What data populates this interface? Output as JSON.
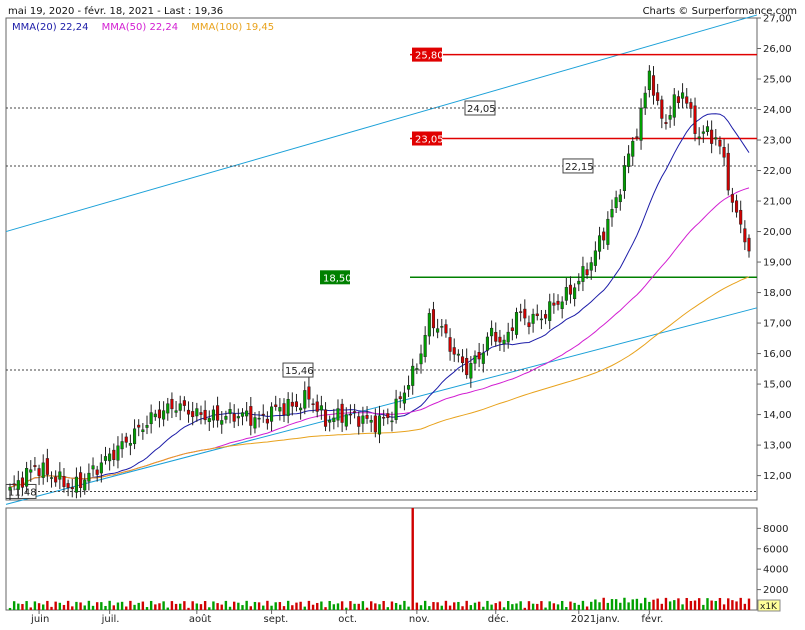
{
  "header": {
    "range_text": "mai 19, 2020 - févr. 18, 2021 - Last : 19,36",
    "credit": "Charts © Surperformance.com"
  },
  "legend": [
    {
      "label": "MMA(20)",
      "value": "22,24",
      "color": "#1c1ca8"
    },
    {
      "label": "MMA(50)",
      "value": "22,24",
      "color": "#d21ed2"
    },
    {
      "label": "MMA(100)",
      "value": "19,45",
      "color": "#e8a21c"
    }
  ],
  "colors": {
    "up": "#00a000",
    "down": "#d00000",
    "candle_outline": "#222222",
    "trend": "#1aa0d8",
    "support": "#008000",
    "resistance": "#e00000"
  },
  "chart_data": [
    {
      "type": "candlestick",
      "title": "",
      "x_tick_labels": [
        "juin",
        "juil.",
        "août",
        "sept.",
        "oct.",
        "nov.",
        "déc.",
        "2021janv.",
        "févr."
      ],
      "y_tick_labels": [
        "12,00",
        "13,00",
        "14,00",
        "15,00",
        "16,00",
        "17,00",
        "18,00",
        "19,00",
        "20,00",
        "21,00",
        "22,00",
        "23,00",
        "24,00",
        "25,00",
        "26,00",
        "27,00"
      ],
      "ylim": [
        11.2,
        27.0
      ],
      "grid": false,
      "last": 19.36,
      "horizontal_levels": [
        {
          "value": 25.8,
          "label": "25,80",
          "style": "solid",
          "color": "#e00000"
        },
        {
          "value": 24.05,
          "label": "24,05",
          "style": "dotted",
          "color": "#444444"
        },
        {
          "value": 23.05,
          "label": "23,05",
          "style": "solid",
          "color": "#e00000"
        },
        {
          "value": 22.15,
          "label": "22,15",
          "style": "dotted",
          "color": "#444444"
        },
        {
          "value": 18.5,
          "label": "18,50",
          "style": "solid",
          "color": "#008000"
        },
        {
          "value": 15.46,
          "label": "15,46",
          "style": "dotted",
          "color": "#444444"
        },
        {
          "value": 11.48,
          "label": "11,48",
          "style": "dotted",
          "color": "#444444"
        }
      ],
      "closes_anchor": [
        [
          0,
          11.5
        ],
        [
          6,
          12.3
        ],
        [
          10,
          12.0
        ],
        [
          15,
          11.6
        ],
        [
          18,
          11.9
        ],
        [
          22,
          12.4
        ],
        [
          27,
          13.0
        ],
        [
          31,
          13.5
        ],
        [
          35,
          14.0
        ],
        [
          40,
          14.3
        ],
        [
          45,
          14.0
        ],
        [
          50,
          13.9
        ],
        [
          56,
          14.0
        ],
        [
          60,
          13.8
        ],
        [
          64,
          14.2
        ],
        [
          69,
          14.3
        ],
        [
          72,
          14.6
        ],
        [
          76,
          13.8
        ],
        [
          80,
          14.0
        ],
        [
          84,
          13.9
        ],
        [
          88,
          13.7
        ],
        [
          92,
          14.0
        ],
        [
          95,
          14.8
        ],
        [
          98,
          15.6
        ],
        [
          101,
          17.1
        ],
        [
          104,
          16.8
        ],
        [
          107,
          16.0
        ],
        [
          110,
          15.5
        ],
        [
          113,
          15.9
        ],
        [
          116,
          16.7
        ],
        [
          119,
          16.3
        ],
        [
          122,
          17.3
        ],
        [
          125,
          17.1
        ],
        [
          128,
          17.2
        ],
        [
          131,
          17.6
        ],
        [
          134,
          17.9
        ],
        [
          137,
          18.4
        ],
        [
          140,
          19.0
        ],
        [
          143,
          20.0
        ],
        [
          146,
          21.0
        ],
        [
          149,
          22.5
        ],
        [
          152,
          23.8
        ],
        [
          154,
          25.3
        ],
        [
          156,
          24.0
        ],
        [
          158,
          23.6
        ],
        [
          160,
          24.2
        ],
        [
          162,
          24.6
        ],
        [
          164,
          23.8
        ],
        [
          166,
          23.1
        ],
        [
          168,
          23.3
        ],
        [
          170,
          23.0
        ],
        [
          172,
          22.4
        ],
        [
          174,
          20.8
        ],
        [
          176,
          20.3
        ],
        [
          178,
          19.36
        ]
      ],
      "trend_lines": [
        {
          "from": {
            "i": 0,
            "v": 20.0
          },
          "to": {
            "i": 178,
            "v": 27.1
          }
        },
        {
          "from": {
            "i": 15,
            "v": 11.6
          },
          "to": {
            "i": 178,
            "v": 17.5
          }
        }
      ]
    },
    {
      "type": "bar",
      "title": "",
      "ylabel": "x1K",
      "y_tick_labels": [
        "2000",
        "4000",
        "6000",
        "8000"
      ],
      "ylim": [
        0,
        10000
      ],
      "spike": {
        "index": 97,
        "value": 10000
      }
    }
  ]
}
